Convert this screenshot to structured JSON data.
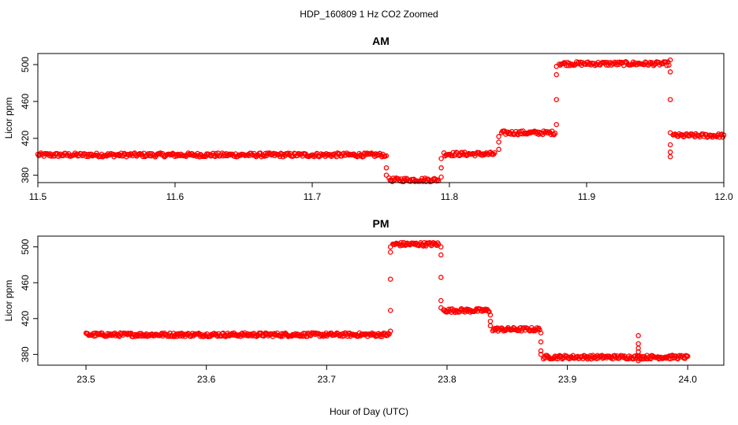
{
  "figure": {
    "title": "HDP_160809  1 Hz CO2 Zoomed",
    "xlabel": "Hour of Day (UTC)"
  },
  "chart_data": [
    {
      "type": "scatter",
      "title": "AM",
      "xlabel": "Hour of Day (UTC)",
      "ylabel": "Licor ppm",
      "xlim": [
        11.5,
        12.0
      ],
      "ylim": [
        372,
        512
      ],
      "xticks": [
        "11.5",
        "11.6",
        "11.7",
        "11.8",
        "11.9",
        "12.0"
      ],
      "yticks": [
        "380",
        "420",
        "460",
        "500"
      ],
      "color": "#ff0000",
      "grid": false,
      "segments": [
        {
          "x": [
            11.5,
            11.753
          ],
          "y": 402
        },
        {
          "x": [
            11.756,
            11.792
          ],
          "y": 375
        },
        {
          "x": [
            11.796,
            11.833
          ],
          "y": 403
        },
        {
          "x": [
            11.838,
            11.877
          ],
          "y": 426
        },
        {
          "x": [
            11.88,
            11.96
          ],
          "y": 501
        },
        {
          "x": [
            11.963,
            12.0
          ],
          "y": 423
        }
      ],
      "transitions": [
        {
          "x": 11.754,
          "y": [
            401,
            388,
            380
          ]
        },
        {
          "x": 11.794,
          "y": [
            378,
            388,
            398
          ]
        },
        {
          "x": 11.836,
          "y": [
            408,
            416,
            422
          ]
        },
        {
          "x": 11.878,
          "y": [
            435,
            462,
            489,
            498
          ]
        },
        {
          "x": 11.961,
          "y": [
            505,
            492,
            462,
            426,
            413,
            405,
            400
          ]
        }
      ]
    },
    {
      "type": "scatter",
      "title": "PM",
      "xlabel": "Hour of Day (UTC)",
      "ylabel": "Licor ppm",
      "xlim": [
        23.46,
        24.03
      ],
      "ylim": [
        368,
        512
      ],
      "xticks": [
        "23.5",
        "23.6",
        "23.7",
        "23.8",
        "23.9",
        "24.0"
      ],
      "yticks": [
        "380",
        "420",
        "460",
        "500"
      ],
      "color": "#ff0000",
      "grid": false,
      "segments": [
        {
          "x": [
            23.5,
            23.752
          ],
          "y": 402
        },
        {
          "x": [
            23.755,
            23.793
          ],
          "y": 503
        },
        {
          "x": [
            23.797,
            23.835
          ],
          "y": 429
        },
        {
          "x": [
            23.838,
            23.877
          ],
          "y": 408
        },
        {
          "x": [
            23.88,
            24.0
          ],
          "y": 377
        }
      ],
      "transitions": [
        {
          "x": 23.753,
          "y": [
            406,
            429,
            464,
            494,
            500
          ]
        },
        {
          "x": 23.795,
          "y": [
            500,
            491,
            466,
            440,
            432
          ]
        },
        {
          "x": 23.836,
          "y": [
            424,
            417,
            412
          ]
        },
        {
          "x": 23.878,
          "y": [
            404,
            394,
            384,
            380
          ]
        },
        {
          "x": 23.959,
          "y": [
            401,
            392,
            387,
            383,
            378,
            373
          ]
        }
      ]
    }
  ]
}
